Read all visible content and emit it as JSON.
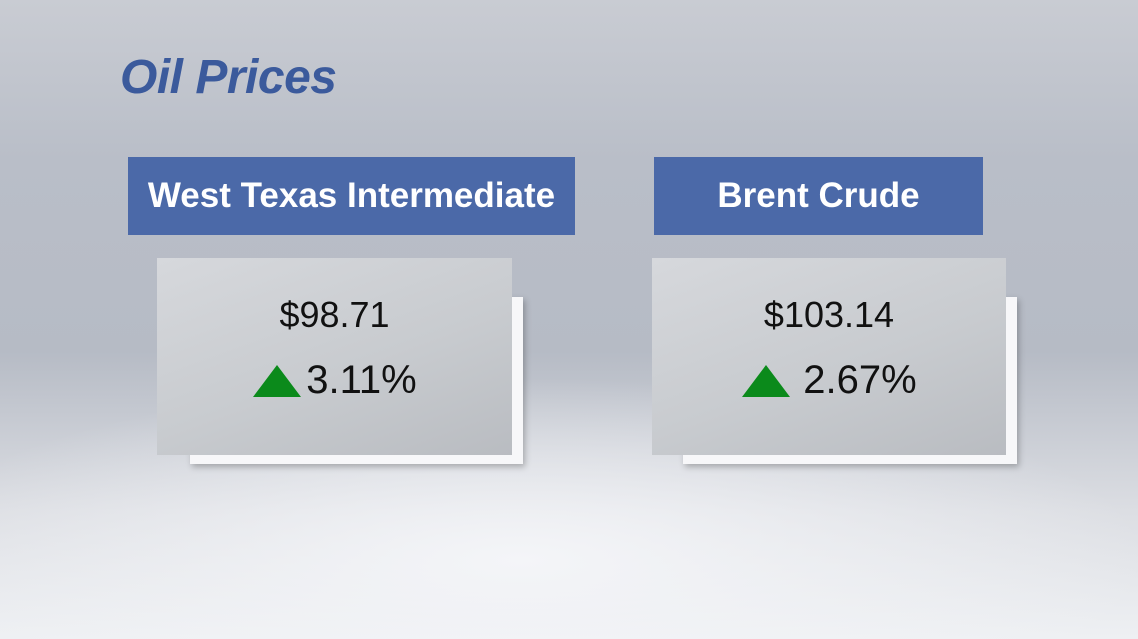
{
  "title": "Oil Prices",
  "cards": [
    {
      "name": "West Texas Intermediate",
      "price": "$98.71",
      "change": "3.11%"
    },
    {
      "name": "Brent Crude",
      "price": "$103.14",
      "change": "2.67%"
    }
  ]
}
